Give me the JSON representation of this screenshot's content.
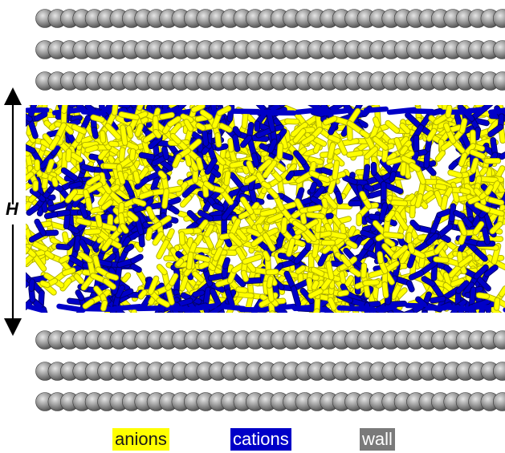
{
  "figure": {
    "height_label": "H"
  },
  "legend": {
    "anions": {
      "label": "anions",
      "color": "#ffff00"
    },
    "cations": {
      "label": "cations",
      "color": "#0000c8"
    },
    "wall": {
      "label": "wall",
      "color": "#7a7a7a"
    }
  },
  "walls": {
    "top_layers": 3,
    "bottom_layers": 3,
    "atom_color": "#8a8a8a"
  },
  "icons": {
    "height_arrow": "double-headed-vertical-arrow"
  }
}
